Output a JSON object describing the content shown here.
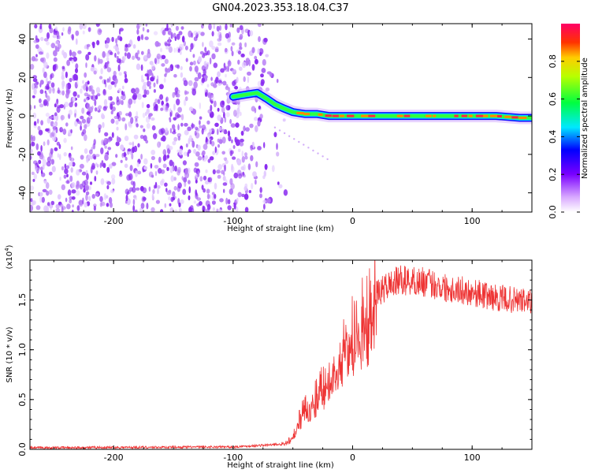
{
  "title": "GN04.2023.353.18.04.C37",
  "chart_data": [
    {
      "type": "heatmap",
      "xlabel": "Height of straight line (km)",
      "ylabel": "Frequency (Hz)",
      "xlim": [
        -270,
        150
      ],
      "ylim": [
        -50,
        48
      ],
      "x_ticks": [
        "-200",
        "-100",
        "0",
        "100"
      ],
      "y_ticks": [
        "-40",
        "-20",
        "0",
        "20",
        "40"
      ],
      "noise_region_x": [
        -270,
        -65
      ],
      "ridge": {
        "x": [
          -100,
          -90,
          -80,
          -72,
          -65,
          -58,
          -50,
          -40,
          -30,
          -20,
          -10,
          0,
          20,
          40,
          60,
          80,
          100,
          120,
          140,
          150
        ],
        "y": [
          10,
          11,
          12,
          9,
          6,
          4,
          2,
          1,
          1,
          0,
          0,
          0,
          0,
          0,
          0,
          0,
          0,
          0,
          -1,
          -1
        ]
      },
      "colorbar": {
        "label": "Normalized spectral amplitude",
        "ticks": [
          "0.0",
          "0.2",
          "0.4",
          "0.6",
          "0.8"
        ],
        "range": [
          0,
          1
        ]
      }
    },
    {
      "type": "line",
      "xlabel": "Height of straight line (km)",
      "ylabel": "SNR (10 * v/v)",
      "scale_label": "(x10",
      "scale_exponent": "4",
      "scale_close": ")",
      "xlim": [
        -270,
        150
      ],
      "ylim": [
        0,
        19000
      ],
      "x_ticks": [
        "-200",
        "-100",
        "0",
        "100"
      ],
      "y_ticks": [
        "0.0",
        "0.5",
        "1.0",
        "1.5"
      ],
      "color": "#ee3333",
      "envelope": {
        "x": [
          -270,
          -100,
          -60,
          -50,
          -45,
          -40,
          -30,
          -20,
          -10,
          -5,
          0,
          10,
          20,
          30,
          40,
          60,
          80,
          100,
          120,
          150
        ],
        "y": [
          150,
          250,
          500,
          1200,
          3000,
          4500,
          5500,
          7500,
          9500,
          11000,
          12000,
          14000,
          15500,
          16500,
          17000,
          16800,
          16200,
          15800,
          15200,
          14800
        ]
      }
    }
  ]
}
